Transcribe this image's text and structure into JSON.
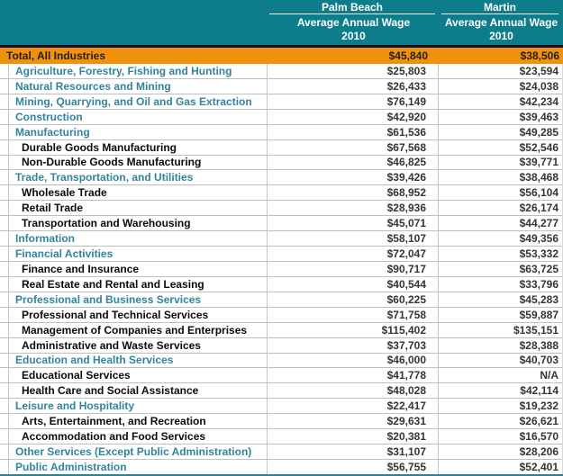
{
  "colors": {
    "header_bg": "#0d7c8b",
    "accent_orange": "#f0920d",
    "category_text": "#31849b",
    "grid_line": "#c0c0c0",
    "header_text": "#ffffff",
    "bottom_border": "#2a8191"
  },
  "chart_data": {
    "type": "table",
    "column_groups": [
      {
        "name": "Palm Beach",
        "subtitle": "Average Annual Wage",
        "year": "2010"
      },
      {
        "name": "Martin",
        "subtitle": "Average Annual Wage",
        "year": "2010"
      }
    ],
    "total_row": {
      "label": "Total, All Industries",
      "palm_beach": "$45,840",
      "martin": "$38,506"
    },
    "rows": [
      {
        "label": "Agriculture, Forestry, Fishing and Hunting",
        "level": "category",
        "palm_beach": "$25,803",
        "martin": "$23,594"
      },
      {
        "label": "Natural Resources and Mining",
        "level": "category",
        "palm_beach": "$26,433",
        "martin": "$24,038"
      },
      {
        "label": "Mining, Quarrying, and Oil and Gas Extraction",
        "level": "category",
        "palm_beach": "$76,149",
        "martin": "$42,234"
      },
      {
        "label": "Construction",
        "level": "category",
        "palm_beach": "$42,920",
        "martin": "$39,463"
      },
      {
        "label": "Manufacturing",
        "level": "category",
        "palm_beach": "$61,536",
        "martin": "$49,285"
      },
      {
        "label": "Durable Goods Manufacturing",
        "level": "sub",
        "palm_beach": "$67,568",
        "martin": "$52,546"
      },
      {
        "label": "Non-Durable Goods Manufacturing",
        "level": "sub",
        "palm_beach": "$46,825",
        "martin": "$39,771"
      },
      {
        "label": "Trade, Transportation, and Utilities",
        "level": "category",
        "palm_beach": "$39,426",
        "martin": "$38,468"
      },
      {
        "label": "Wholesale Trade",
        "level": "sub",
        "palm_beach": "$68,952",
        "martin": "$56,104"
      },
      {
        "label": "Retail Trade",
        "level": "sub",
        "palm_beach": "$28,936",
        "martin": "$26,174"
      },
      {
        "label": "Transportation and Warehousing",
        "level": "sub",
        "palm_beach": "$45,071",
        "martin": "$44,277"
      },
      {
        "label": "Information",
        "level": "category",
        "palm_beach": "$58,107",
        "martin": "$49,356"
      },
      {
        "label": "Financial Activities",
        "level": "category",
        "palm_beach": "$72,047",
        "martin": "$53,332"
      },
      {
        "label": "Finance and Insurance",
        "level": "sub",
        "palm_beach": "$90,717",
        "martin": "$63,725"
      },
      {
        "label": "Real Estate and Rental and Leasing",
        "level": "sub",
        "palm_beach": "$40,544",
        "martin": "$33,796"
      },
      {
        "label": "Professional and Business Services",
        "level": "category",
        "palm_beach": "$60,225",
        "martin": "$45,283"
      },
      {
        "label": "Professional and Technical Services",
        "level": "sub",
        "palm_beach": "$71,758",
        "martin": "$59,887"
      },
      {
        "label": "Management of Companies and Enterprises",
        "level": "sub",
        "palm_beach": "$115,402",
        "martin": "$135,151"
      },
      {
        "label": "Administrative and Waste Services",
        "level": "sub",
        "palm_beach": "$37,703",
        "martin": "$28,388"
      },
      {
        "label": "Education and Health Services",
        "level": "category",
        "palm_beach": "$46,000",
        "martin": "$40,703"
      },
      {
        "label": "Educational Services",
        "level": "sub",
        "palm_beach": "$41,778",
        "martin": "N/A"
      },
      {
        "label": "Health Care and Social Assistance",
        "level": "sub",
        "palm_beach": "$48,028",
        "martin": "$42,114"
      },
      {
        "label": "Leisure and Hospitality",
        "level": "category",
        "palm_beach": "$22,417",
        "martin": "$19,232"
      },
      {
        "label": "Arts, Entertainment, and Recreation",
        "level": "sub",
        "palm_beach": "$29,631",
        "martin": "$26,621"
      },
      {
        "label": "Accommodation and Food Services",
        "level": "sub",
        "palm_beach": "$20,381",
        "martin": "$16,570"
      },
      {
        "label": "Other Services (Except Public Administration)",
        "level": "category",
        "palm_beach": "$31,107",
        "martin": "$28,206"
      },
      {
        "label": "Public Administration",
        "level": "category",
        "palm_beach": "$56,755",
        "martin": "$52,401"
      }
    ]
  }
}
